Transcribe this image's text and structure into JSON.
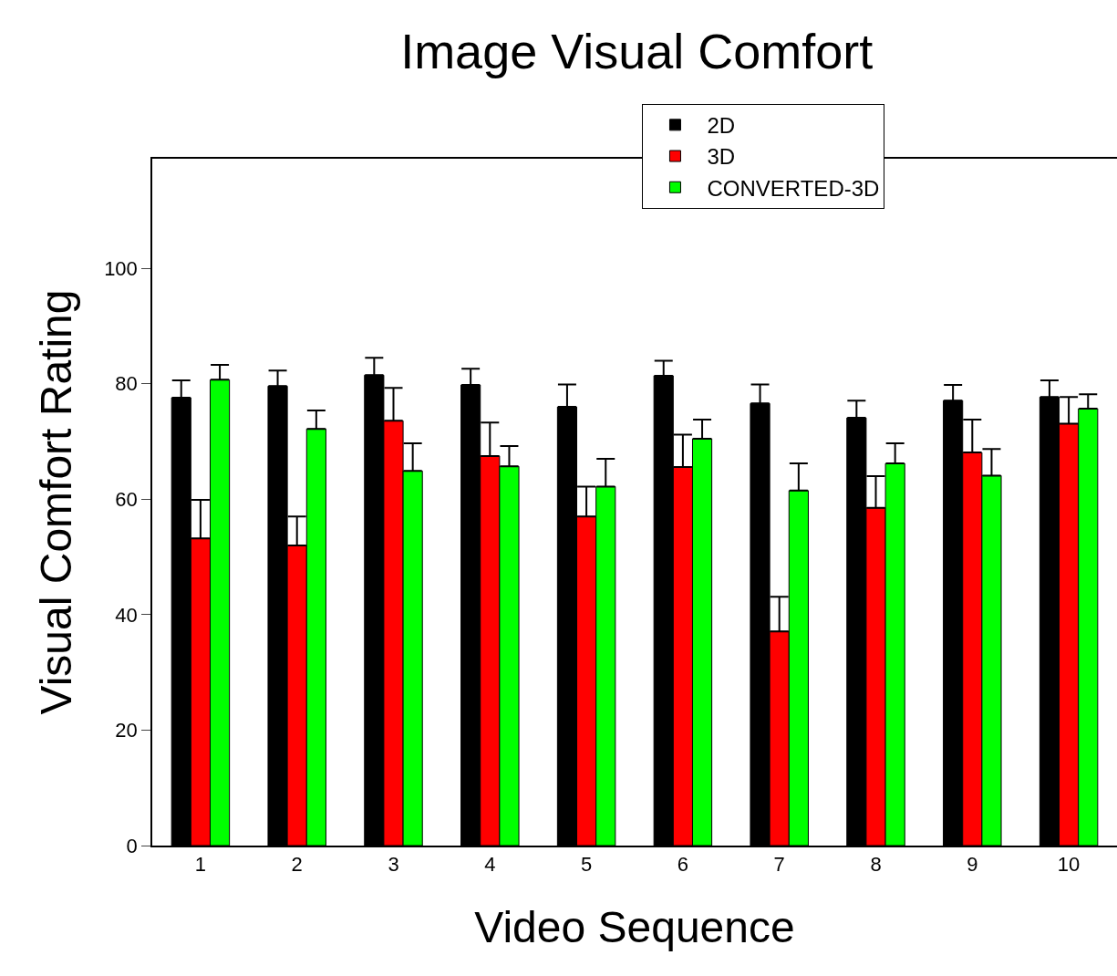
{
  "chart_data": {
    "type": "bar",
    "title": "Image Visual Comfort",
    "xlabel": "Video Sequence",
    "ylabel": "Visual Comfort Rating",
    "categories": [
      "1",
      "2",
      "3",
      "4",
      "5",
      "6",
      "7",
      "8",
      "9",
      "10"
    ],
    "series": [
      {
        "name": "2D",
        "color": "#000000",
        "values": [
          77.6,
          79.6,
          81.5,
          79.8,
          76.0,
          81.4,
          76.6,
          74.1,
          77.1,
          77.7
        ],
        "errors": [
          [
            77.6,
            80.6
          ],
          [
            79.6,
            82.3
          ],
          [
            81.5,
            84.5
          ],
          [
            79.8,
            82.6
          ],
          [
            76.0,
            79.9
          ],
          [
            81.4,
            84.0
          ],
          [
            76.6,
            79.9
          ],
          [
            74.1,
            77.1
          ],
          [
            77.1,
            79.8
          ],
          [
            77.7,
            80.6
          ]
        ]
      },
      {
        "name": "3D",
        "color": "#ff0000",
        "values": [
          53.2,
          52.0,
          73.6,
          67.5,
          57.0,
          65.6,
          37.1,
          58.5,
          68.1,
          73.1
        ],
        "errors": [
          [
            53.2,
            59.9
          ],
          [
            52.0,
            57.0
          ],
          [
            73.6,
            79.3
          ],
          [
            67.5,
            73.3
          ],
          [
            57.0,
            62.2
          ],
          [
            65.6,
            71.2
          ],
          [
            37.1,
            43.1
          ],
          [
            58.5,
            64.0
          ],
          [
            68.1,
            73.8
          ],
          [
            73.1,
            77.7
          ]
        ]
      },
      {
        "name": "CONVERTED-3D",
        "color": "#00ff00",
        "values": [
          80.7,
          72.2,
          64.9,
          65.7,
          62.2,
          70.5,
          61.5,
          66.2,
          64.1,
          75.7
        ],
        "errors": [
          [
            80.7,
            83.3
          ],
          [
            72.2,
            75.4
          ],
          [
            64.9,
            69.7
          ],
          [
            65.7,
            69.2
          ],
          [
            62.2,
            67.0
          ],
          [
            70.5,
            73.8
          ],
          [
            61.5,
            66.2
          ],
          [
            66.2,
            69.7
          ],
          [
            64.1,
            68.7
          ],
          [
            75.7,
            78.2
          ]
        ]
      }
    ],
    "ylim": [
      0,
      119
    ],
    "yticks": [
      0,
      20,
      40,
      60,
      80,
      100
    ],
    "legend": "top right"
  }
}
